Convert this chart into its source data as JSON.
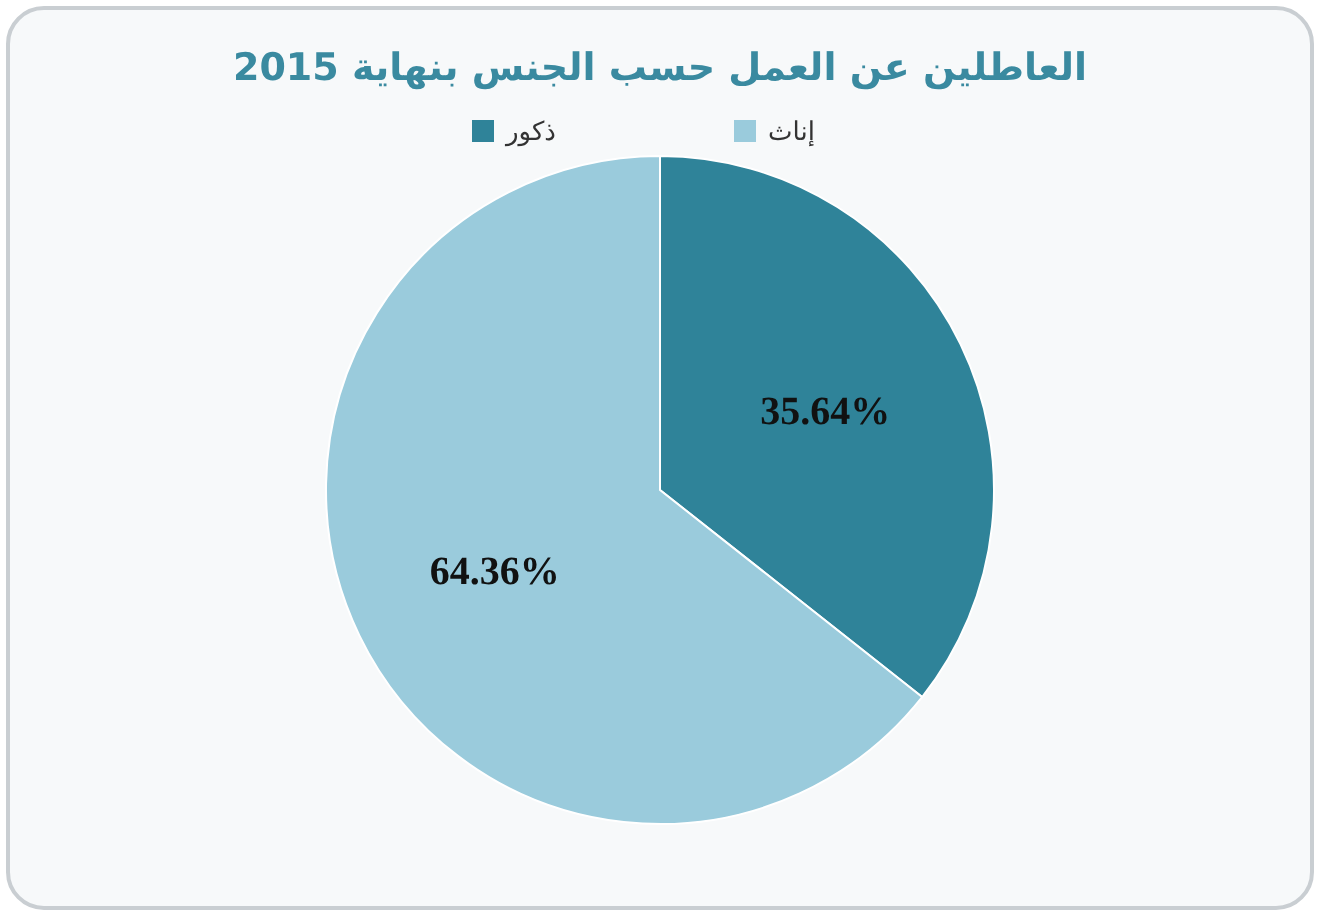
{
  "chart_data": {
    "type": "pie",
    "title": "العاطلين عن العمل حسب الجنس بنهاية 2015",
    "categories": [
      "ذكور",
      "إناث"
    ],
    "values": [
      35.64,
      64.36
    ],
    "colors": [
      "#2f8399",
      "#9acbdc"
    ],
    "value_labels": [
      "35.64%",
      "64.36%"
    ],
    "legend": "top"
  }
}
